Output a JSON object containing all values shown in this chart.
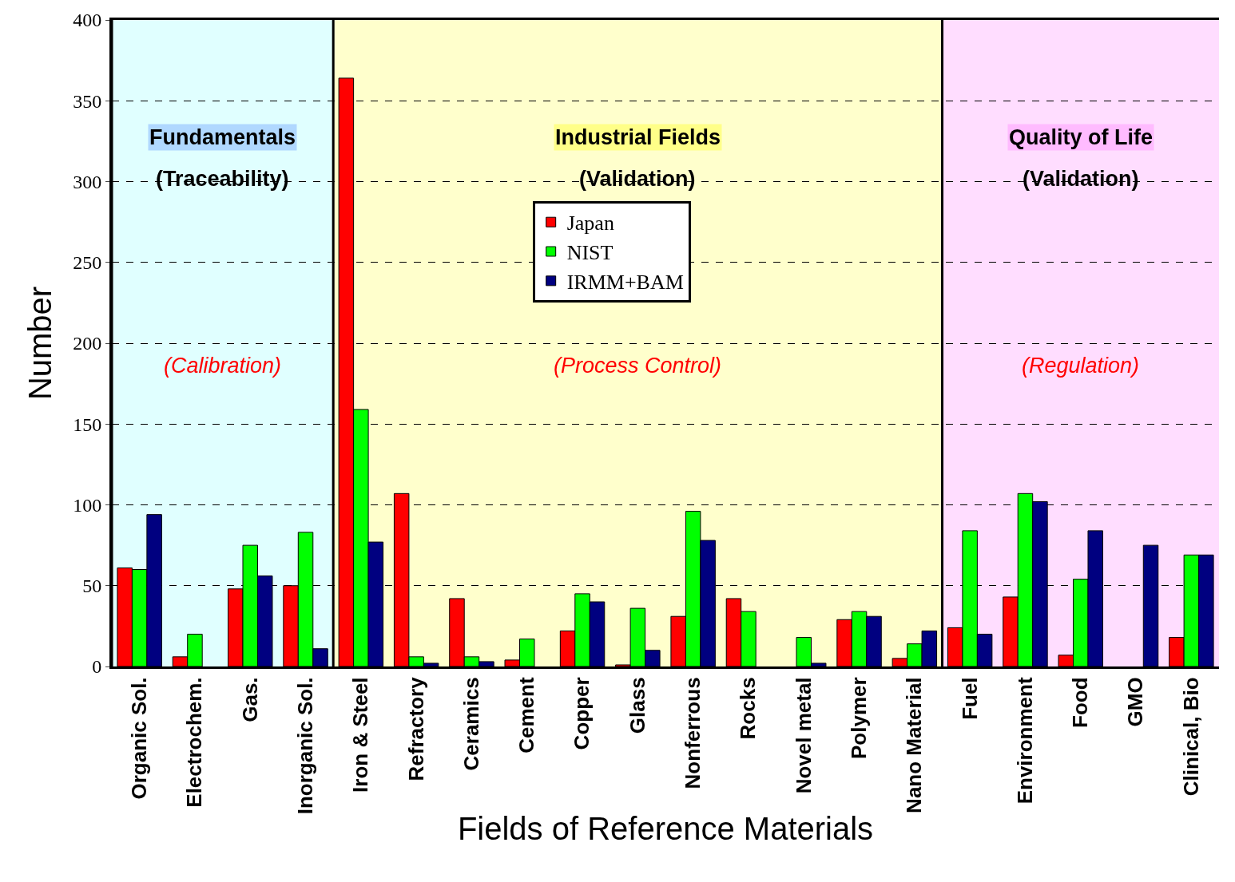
{
  "chart_data": {
    "type": "bar",
    "xlabel": "Fields of Reference Materials",
    "ylabel": "Number",
    "categories": [
      "Organic Sol.",
      "Electrochem.",
      "Gas.",
      "Inorganic Sol.",
      "Iron & Steel",
      "Refractory",
      "Ceramics",
      "Cement",
      "Copper",
      "Glass",
      "Nonferrous",
      "Rocks",
      "Novel metal",
      "Polymer",
      "Nano Material",
      "Fuel",
      "Environment",
      "Food",
      "GMO",
      "Clinical, Bio"
    ],
    "series": [
      {
        "name": "Japan",
        "color": "#ff0000",
        "values": [
          61,
          6,
          48,
          50,
          364,
          107,
          42,
          4,
          22,
          1,
          31,
          42,
          0,
          29,
          5,
          24,
          43,
          7,
          0,
          18
        ]
      },
      {
        "name": "NIST",
        "color": "#00ff00",
        "values": [
          60,
          20,
          75,
          83,
          159,
          6,
          6,
          17,
          45,
          36,
          96,
          34,
          18,
          34,
          14,
          84,
          107,
          54,
          0,
          69
        ]
      },
      {
        "name": "IRMM+BAM",
        "color": "#000080",
        "values": [
          94,
          0,
          56,
          11,
          77,
          2,
          3,
          0,
          40,
          10,
          78,
          0,
          2,
          31,
          22,
          20,
          102,
          84,
          75,
          69
        ]
      }
    ],
    "ylim": [
      0,
      400
    ],
    "yticks": [
      0,
      50,
      100,
      150,
      200,
      250,
      300,
      350,
      400
    ],
    "grid": "y",
    "legend": "top",
    "bands": [
      {
        "axis": "x",
        "from": "Organic Sol.",
        "to": "Inorganic Sol.",
        "label": "Fundamentals\n(Traceability)",
        "color": "#e0ffff"
      },
      {
        "axis": "x",
        "from": "Iron & Steel",
        "to": "Nano Material",
        "label": "Industrial Fields\n(Validation)",
        "color": "#ffffcc"
      },
      {
        "axis": "x",
        "from": "Fuel",
        "to": "Clinical, Bio",
        "label": "Quality of Life\n(Validation)",
        "color": "#ffddff"
      }
    ],
    "annotations": [
      "(Calibration)",
      "(Process Control)",
      "(Regulation)"
    ]
  }
}
